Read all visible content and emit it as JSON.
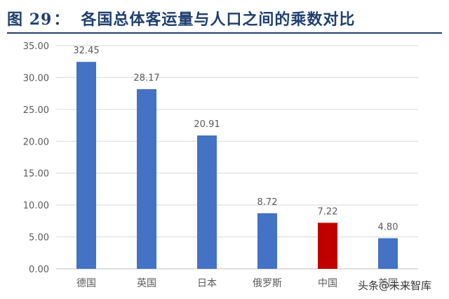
{
  "header": {
    "figure_label": "图",
    "figure_number": "29",
    "separator": "：",
    "title_text": "各国总体客运量与人口之间的乘数对比"
  },
  "watermark": "头条@未来智库",
  "colors": {
    "title": "#1f3f6e",
    "bar_default": "#4472c4",
    "bar_highlight": "#c00000",
    "gridline": "#d9d9d9",
    "axis_text": "#595959"
  },
  "chart_data": {
    "type": "bar",
    "title": "",
    "xlabel": "",
    "ylabel": "",
    "categories": [
      "德国",
      "英国",
      "日本",
      "俄罗斯",
      "中国",
      "美国"
    ],
    "values": [
      32.45,
      28.17,
      20.91,
      8.72,
      7.22,
      4.8
    ],
    "value_labels": [
      "32.45",
      "28.17",
      "20.91",
      "8.72",
      "7.22",
      "4.80"
    ],
    "highlight_category": "中国",
    "ylim": [
      0,
      35
    ],
    "yticks": [
      "0.00",
      "5.00",
      "10.00",
      "15.00",
      "20.00",
      "25.00",
      "30.00",
      "35.00"
    ],
    "grid": true,
    "legend": "none"
  }
}
